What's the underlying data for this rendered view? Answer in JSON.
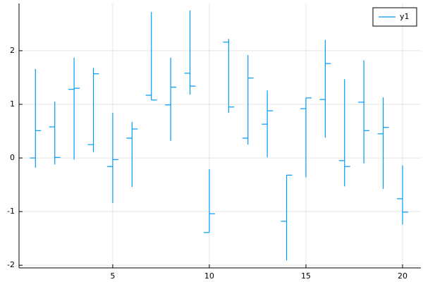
{
  "chart_data": {
    "type": "ohlc",
    "x": [
      1,
      2,
      3,
      4,
      5,
      6,
      7,
      8,
      9,
      10,
      11,
      12,
      13,
      14,
      15,
      16,
      17,
      18,
      19,
      20
    ],
    "series": [
      {
        "name": "y1",
        "color": "#009af9",
        "open": [
          0.0,
          0.58,
          1.28,
          0.25,
          -0.16,
          0.37,
          1.17,
          0.99,
          1.58,
          -1.39,
          2.16,
          0.37,
          0.63,
          -1.18,
          0.92,
          1.09,
          -0.05,
          1.04,
          0.45,
          -0.76
        ],
        "high": [
          1.66,
          1.05,
          1.87,
          1.68,
          0.84,
          0.67,
          2.72,
          1.87,
          2.75,
          -0.21,
          2.22,
          1.92,
          1.26,
          -0.32,
          1.12,
          2.2,
          1.47,
          1.82,
          1.13,
          -0.14
        ],
        "low": [
          -0.18,
          -0.12,
          -0.03,
          0.11,
          -0.84,
          -0.54,
          1.08,
          0.32,
          1.18,
          -1.39,
          0.84,
          0.25,
          0.01,
          -1.91,
          -0.36,
          0.38,
          -0.53,
          -0.1,
          -0.58,
          -1.24
        ],
        "close": [
          0.51,
          0.01,
          1.3,
          1.57,
          -0.03,
          0.54,
          1.08,
          1.32,
          1.34,
          -1.04,
          0.95,
          1.49,
          0.88,
          -0.32,
          1.12,
          1.76,
          -0.16,
          0.51,
          0.57,
          -1.01
        ]
      }
    ],
    "xlim": [
      0.15,
      20.95
    ],
    "ylim": [
      -2.05,
      2.88
    ],
    "xticks": [
      5,
      10,
      15,
      20
    ],
    "yticks": [
      -2,
      -1,
      0,
      1,
      2
    ],
    "grid": true,
    "legend": "top-right"
  }
}
